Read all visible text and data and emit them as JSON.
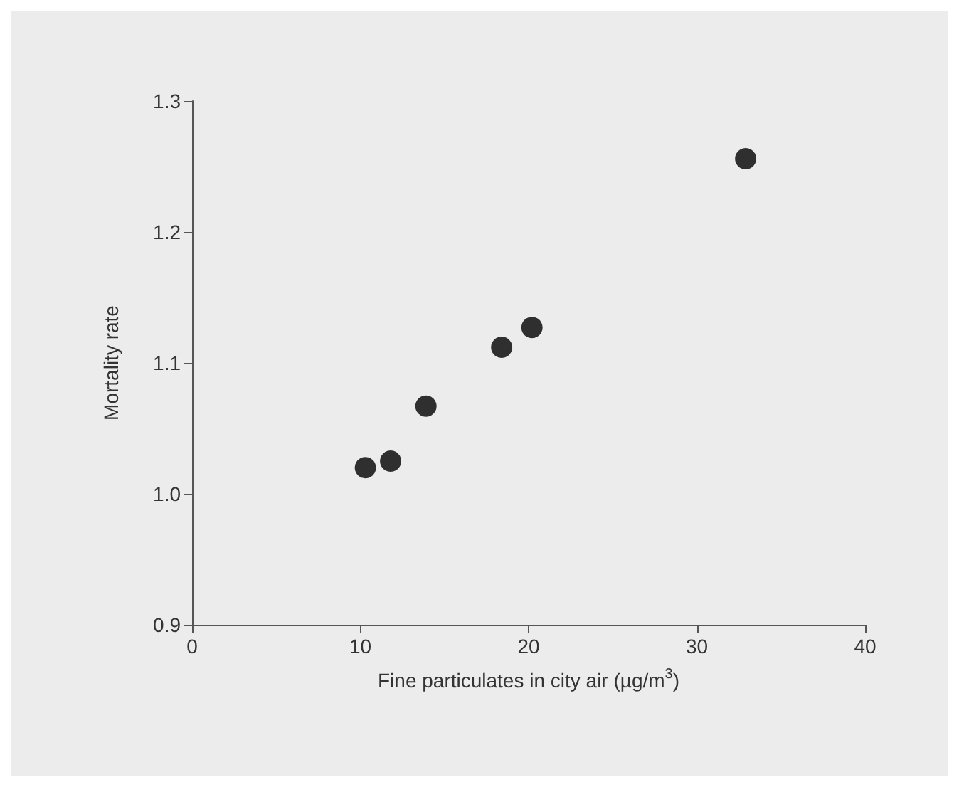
{
  "chart_data": {
    "type": "scatter",
    "xlabel": "Fine particulates in city air (µg/m$^{3}$)",
    "ylabel": "Mortality rate",
    "x": [
      10.3,
      11.8,
      13.9,
      18.4,
      20.2,
      32.9
    ],
    "series": [
      {
        "color": "#000000",
        "values": [
          1.02,
          1.025,
          1.067,
          1.112,
          1.127,
          1.256
        ]
      }
    ],
    "xlim": [
      0,
      40
    ],
    "xticks": [
      0,
      10,
      20,
      30,
      40
    ],
    "ylim": [
      0.9,
      1.3
    ],
    "yticks": [
      0.9,
      {
        "value": 1.0,
        "label": "1.0"
      },
      1.1,
      1.2,
      1.3
    ],
    "marker": "circle",
    "grid": false
  }
}
